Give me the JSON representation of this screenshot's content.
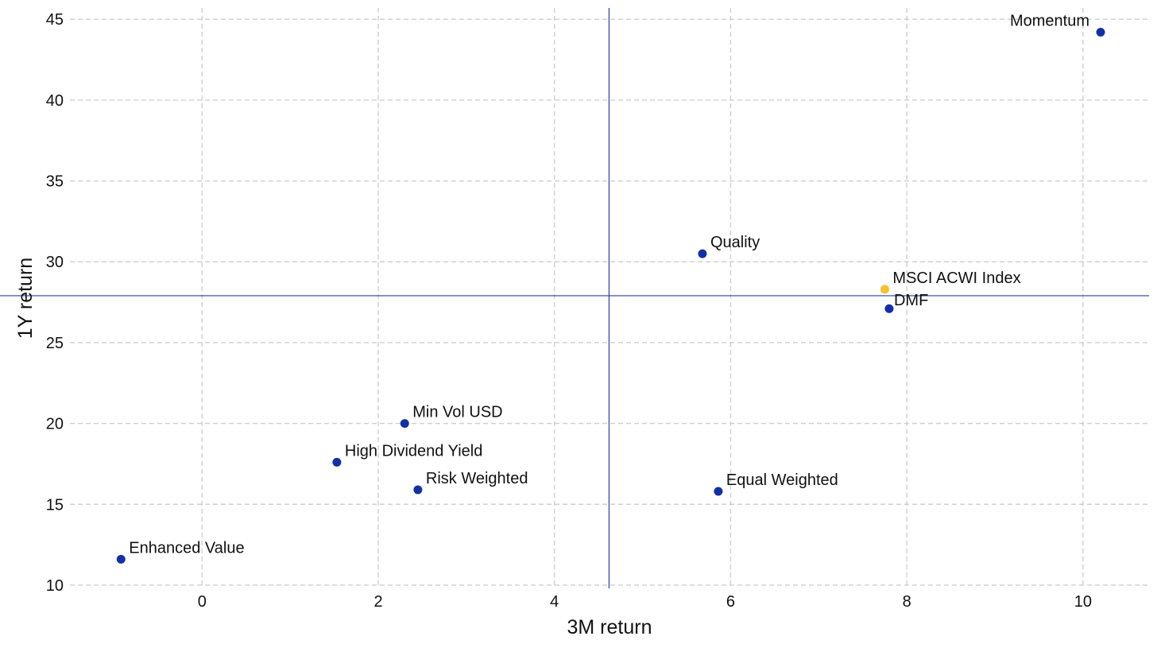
{
  "chart_data": {
    "type": "scatter",
    "title": "",
    "xlabel": "3M return",
    "ylabel": "1Y return",
    "xlim": [
      -1.5,
      10.75
    ],
    "ylim": [
      9.8,
      45.7
    ],
    "x_ticks": [
      0,
      2,
      4,
      6,
      8,
      10
    ],
    "y_ticks": [
      10,
      15,
      20,
      25,
      30,
      35,
      40,
      45
    ],
    "grid": true,
    "reference_lines": {
      "x": 4.62,
      "y": 27.9
    },
    "points": [
      {
        "label": "Momentum",
        "x": 10.2,
        "y": 44.2,
        "color": "#1230a6",
        "label_pos": "upper-left"
      },
      {
        "label": "Quality",
        "x": 5.68,
        "y": 30.5,
        "color": "#1230a6",
        "label_pos": "upper-right"
      },
      {
        "label": "MSCI ACWI Index",
        "x": 7.75,
        "y": 28.3,
        "color": "#f3c22f",
        "label_pos": "upper-right"
      },
      {
        "label": "DMF",
        "x": 7.8,
        "y": 27.1,
        "color": "#1230a6",
        "label_pos": "right"
      },
      {
        "label": "Min Vol USD",
        "x": 2.3,
        "y": 20.0,
        "color": "#1230a6",
        "label_pos": "upper-right"
      },
      {
        "label": "High Dividend Yield",
        "x": 1.53,
        "y": 17.6,
        "color": "#1230a6",
        "label_pos": "upper-right"
      },
      {
        "label": "Risk Weighted",
        "x": 2.45,
        "y": 15.9,
        "color": "#1230a6",
        "label_pos": "upper-right"
      },
      {
        "label": "Equal Weighted",
        "x": 5.86,
        "y": 15.8,
        "color": "#1230a6",
        "label_pos": "upper-right"
      },
      {
        "label": "Enhanced Value",
        "x": -0.92,
        "y": 11.6,
        "color": "#1230a6",
        "label_pos": "upper-right"
      }
    ],
    "reference_line_color": "#2a3ea6",
    "grid_color": "#cfcfcf"
  }
}
